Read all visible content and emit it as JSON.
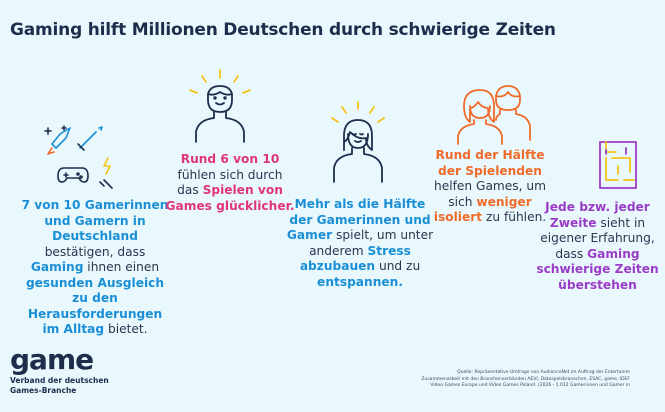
{
  "title": "Gaming hilft Millionen Deutschen durch schwierige Zeiten",
  "stats": [
    {
      "parts": [
        {
          "t": "7 von 10 Gamerinnen und Gamern in Deutschland",
          "b": true
        },
        {
          "t": " bestätigen, dass ",
          "b": false
        },
        {
          "t": "Gaming",
          "b": true
        },
        {
          "t": " ihnen einen ",
          "b": false
        },
        {
          "t": "gesunden Ausgleich zu den Herausforderungen im Alltag",
          "b": true
        },
        {
          "t": " bietet.",
          "b": false
        }
      ]
    },
    {
      "parts": [
        {
          "t": "Rund 6 von 10",
          "b": true
        },
        {
          "t": " fühlen sich durch das ",
          "b": false
        },
        {
          "t": "Spielen von Games glücklicher.",
          "b": true
        }
      ]
    },
    {
      "parts": [
        {
          "t": "Mehr als die Hälfte der Gamerinnen und Gamer",
          "b": true
        },
        {
          "t": " spielt, um unter anderem ",
          "b": false
        },
        {
          "t": "Stress abzubauen",
          "b": true
        },
        {
          "t": " und zu ",
          "b": false
        },
        {
          "t": "entspannen.",
          "b": true
        }
      ]
    },
    {
      "parts": [
        {
          "t": "Rund der Hälfte der Spielenden",
          "b": true
        },
        {
          "t": " helfen Games, um sich ",
          "b": false
        },
        {
          "t": "weniger isoliert",
          "b": true
        },
        {
          "t": " zu fühlen.",
          "b": false
        }
      ]
    },
    {
      "parts": [
        {
          "t": "Jede bzw. jeder",
          "b": true
        },
        {
          "t": " ",
          "b": false
        },
        {
          "t": "Zweite",
          "b": true
        },
        {
          "t": " sieht in eigener Erfahrung, dass ",
          "b": false
        },
        {
          "t": "Gaming",
          "b": true
        },
        {
          "t": " ",
          "b": false
        },
        {
          "t": "schwierige Zeiten überstehen",
          "b": true
        }
      ]
    }
  ],
  "logo": {
    "word": "game",
    "subtitle_line1": "Verband der deutschen",
    "subtitle_line2": "Games-Branche"
  },
  "source": {
    "line1": "Quelle: Repräsentative Umfrage von AudienceNet im Auftrag der Entertainm",
    "line2": "Zusammenarbeit mit den Branchenverbänden AEVI, Datospelsbranschen, ESAC, game, IDEF",
    "line3": "Video Games Europe und Video Games Poland. (2026 - 1.012 Gamerinnen und Gamer in"
  },
  "colors": {
    "background": "#e9f8fd",
    "title": "#1f2d4d",
    "blue": "#1b8fd6",
    "pink": "#e0357b",
    "orange": "#f06b2a",
    "purple": "#9a3cc7",
    "yellow": "#f4c21b"
  },
  "icons": [
    "rocket-sword-controller-icon",
    "happy-person-icon",
    "calm-person-icon",
    "two-people-icon",
    "maze-icon"
  ]
}
